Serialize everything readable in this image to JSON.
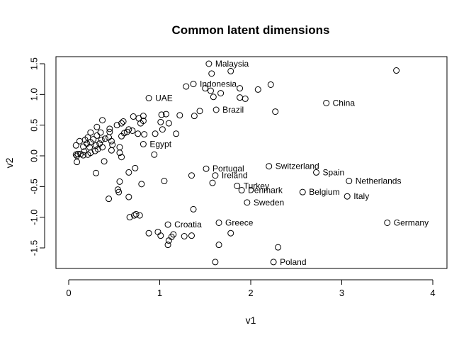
{
  "chart_data": {
    "type": "scatter",
    "title": "Common latent dimensions",
    "xlabel": "v1",
    "ylabel": "v2",
    "xlim": [
      0,
      4
    ],
    "ylim": [
      -1.75,
      1.6
    ],
    "x_ticks": [
      0,
      1,
      2,
      3,
      4
    ],
    "y_ticks": [
      -1.5,
      -1.0,
      -0.5,
      0.0,
      0.5,
      1.0,
      1.5
    ],
    "x_tick_labels": [
      "0",
      "1",
      "2",
      "3",
      "4"
    ],
    "y_tick_labels": [
      "-1.5",
      "-1.0",
      "-0.5",
      "0.0",
      "0.5",
      "1.0",
      "1.5"
    ],
    "grid": false,
    "marker": "open-circle",
    "labeled_points": [
      {
        "label": "Malaysia",
        "x": 1.54,
        "y": 1.5
      },
      {
        "label": "Indonesia",
        "x": 1.37,
        "y": 1.17
      },
      {
        "label": "UAE",
        "x": 0.88,
        "y": 0.94
      },
      {
        "label": "China",
        "x": 2.83,
        "y": 0.86
      },
      {
        "label": "Brazil",
        "x": 1.62,
        "y": 0.75
      },
      {
        "label": "Egypt",
        "x": 0.82,
        "y": 0.19
      },
      {
        "label": "Switzerland",
        "x": 2.2,
        "y": -0.17
      },
      {
        "label": "Portugal",
        "x": 1.51,
        "y": -0.21
      },
      {
        "label": "Spain",
        "x": 2.72,
        "y": -0.27
      },
      {
        "label": "Ireland",
        "x": 1.61,
        "y": -0.32
      },
      {
        "label": "Netherlands",
        "x": 3.08,
        "y": -0.41
      },
      {
        "label": "Turkey",
        "x": 1.85,
        "y": -0.49
      },
      {
        "label": "Denmark",
        "x": 1.9,
        "y": -0.56
      },
      {
        "label": "Belgium",
        "x": 2.57,
        "y": -0.59
      },
      {
        "label": "Italy",
        "x": 3.06,
        "y": -0.66
      },
      {
        "label": "Sweden",
        "x": 1.96,
        "y": -0.76
      },
      {
        "label": "Germany",
        "x": 3.5,
        "y": -1.09
      },
      {
        "label": "Croatia",
        "x": 1.09,
        "y": -1.12
      },
      {
        "label": "Greece",
        "x": 1.65,
        "y": -1.09
      },
      {
        "label": "Poland",
        "x": 2.25,
        "y": -1.73
      }
    ],
    "points": [
      {
        "x": 3.6,
        "y": 1.39
      },
      {
        "x": 1.78,
        "y": 1.38
      },
      {
        "x": 1.57,
        "y": 1.34
      },
      {
        "x": 2.22,
        "y": 1.16
      },
      {
        "x": 1.29,
        "y": 1.13
      },
      {
        "x": 1.5,
        "y": 1.1
      },
      {
        "x": 1.88,
        "y": 1.1
      },
      {
        "x": 2.08,
        "y": 1.08
      },
      {
        "x": 1.56,
        "y": 1.06
      },
      {
        "x": 1.67,
        "y": 1.02
      },
      {
        "x": 1.59,
        "y": 0.96
      },
      {
        "x": 1.88,
        "y": 0.95
      },
      {
        "x": 1.94,
        "y": 0.93
      },
      {
        "x": 2.27,
        "y": 0.72
      },
      {
        "x": 1.44,
        "y": 0.73
      },
      {
        "x": 1.07,
        "y": 0.68
      },
      {
        "x": 1.02,
        "y": 0.67
      },
      {
        "x": 1.22,
        "y": 0.66
      },
      {
        "x": 1.38,
        "y": 0.65
      },
      {
        "x": 0.71,
        "y": 0.64
      },
      {
        "x": 0.82,
        "y": 0.65
      },
      {
        "x": 0.77,
        "y": 0.61
      },
      {
        "x": 0.37,
        "y": 0.58
      },
      {
        "x": 0.6,
        "y": 0.56
      },
      {
        "x": 0.82,
        "y": 0.57
      },
      {
        "x": 0.79,
        "y": 0.53
      },
      {
        "x": 1.01,
        "y": 0.55
      },
      {
        "x": 1.1,
        "y": 0.53
      },
      {
        "x": 0.58,
        "y": 0.53
      },
      {
        "x": 0.53,
        "y": 0.5
      },
      {
        "x": 0.31,
        "y": 0.47
      },
      {
        "x": 0.45,
        "y": 0.44
      },
      {
        "x": 0.66,
        "y": 0.43
      },
      {
        "x": 0.7,
        "y": 0.41
      },
      {
        "x": 0.64,
        "y": 0.39
      },
      {
        "x": 0.24,
        "y": 0.38
      },
      {
        "x": 0.35,
        "y": 0.38
      },
      {
        "x": 0.45,
        "y": 0.39
      },
      {
        "x": 0.61,
        "y": 0.37
      },
      {
        "x": 1.03,
        "y": 0.43
      },
      {
        "x": 0.76,
        "y": 0.36
      },
      {
        "x": 0.95,
        "y": 0.36
      },
      {
        "x": 1.18,
        "y": 0.36
      },
      {
        "x": 0.83,
        "y": 0.35
      },
      {
        "x": 0.31,
        "y": 0.33
      },
      {
        "x": 0.58,
        "y": 0.32
      },
      {
        "x": 0.21,
        "y": 0.3
      },
      {
        "x": 0.44,
        "y": 0.3
      },
      {
        "x": 0.4,
        "y": 0.28
      },
      {
        "x": 0.27,
        "y": 0.27
      },
      {
        "x": 0.18,
        "y": 0.26
      },
      {
        "x": 0.36,
        "y": 0.26
      },
      {
        "x": 0.12,
        "y": 0.24
      },
      {
        "x": 0.47,
        "y": 0.24
      },
      {
        "x": 0.24,
        "y": 0.22
      },
      {
        "x": 0.2,
        "y": 0.2
      },
      {
        "x": 0.34,
        "y": 0.2
      },
      {
        "x": 0.08,
        "y": 0.17
      },
      {
        "x": 0.3,
        "y": 0.17
      },
      {
        "x": 0.48,
        "y": 0.18
      },
      {
        "x": 0.16,
        "y": 0.15
      },
      {
        "x": 0.23,
        "y": 0.14
      },
      {
        "x": 0.37,
        "y": 0.14
      },
      {
        "x": 0.56,
        "y": 0.14
      },
      {
        "x": 0.32,
        "y": 0.11
      },
      {
        "x": 0.47,
        "y": 0.09
      },
      {
        "x": 0.29,
        "y": 0.08
      },
      {
        "x": 0.17,
        "y": 0.07
      },
      {
        "x": 0.24,
        "y": 0.05
      },
      {
        "x": 0.56,
        "y": 0.05
      },
      {
        "x": 0.1,
        "y": 0.03
      },
      {
        "x": 0.13,
        "y": 0.03
      },
      {
        "x": 0.08,
        "y": 0.02
      },
      {
        "x": 0.21,
        "y": 0.02
      },
      {
        "x": 0.16,
        "y": 0.01
      },
      {
        "x": 0.94,
        "y": 0.02
      },
      {
        "x": 0.09,
        "y": 0.0
      },
      {
        "x": 0.58,
        "y": -0.02
      },
      {
        "x": 0.09,
        "y": -0.1
      },
      {
        "x": 0.39,
        "y": -0.09
      },
      {
        "x": 0.73,
        "y": -0.2
      },
      {
        "x": 0.3,
        "y": -0.28
      },
      {
        "x": 0.66,
        "y": -0.27
      },
      {
        "x": 1.35,
        "y": -0.32
      },
      {
        "x": 0.56,
        "y": -0.42
      },
      {
        "x": 1.05,
        "y": -0.41
      },
      {
        "x": 1.58,
        "y": -0.44
      },
      {
        "x": 0.8,
        "y": -0.46
      },
      {
        "x": 0.54,
        "y": -0.55
      },
      {
        "x": 0.55,
        "y": -0.59
      },
      {
        "x": 0.44,
        "y": -0.7
      },
      {
        "x": 0.66,
        "y": -0.67
      },
      {
        "x": 1.37,
        "y": -0.87
      },
      {
        "x": 0.74,
        "y": -0.95
      },
      {
        "x": 0.72,
        "y": -0.97
      },
      {
        "x": 0.78,
        "y": -0.97
      },
      {
        "x": 0.67,
        "y": -1.0
      },
      {
        "x": 0.88,
        "y": -1.26
      },
      {
        "x": 0.98,
        "y": -1.24
      },
      {
        "x": 1.01,
        "y": -1.3
      },
      {
        "x": 1.15,
        "y": -1.28
      },
      {
        "x": 1.13,
        "y": -1.32
      },
      {
        "x": 1.27,
        "y": -1.31
      },
      {
        "x": 1.35,
        "y": -1.3
      },
      {
        "x": 1.78,
        "y": -1.26
      },
      {
        "x": 1.1,
        "y": -1.38
      },
      {
        "x": 1.09,
        "y": -1.45
      },
      {
        "x": 1.65,
        "y": -1.45
      },
      {
        "x": 2.3,
        "y": -1.49
      },
      {
        "x": 1.61,
        "y": -1.73
      }
    ]
  }
}
